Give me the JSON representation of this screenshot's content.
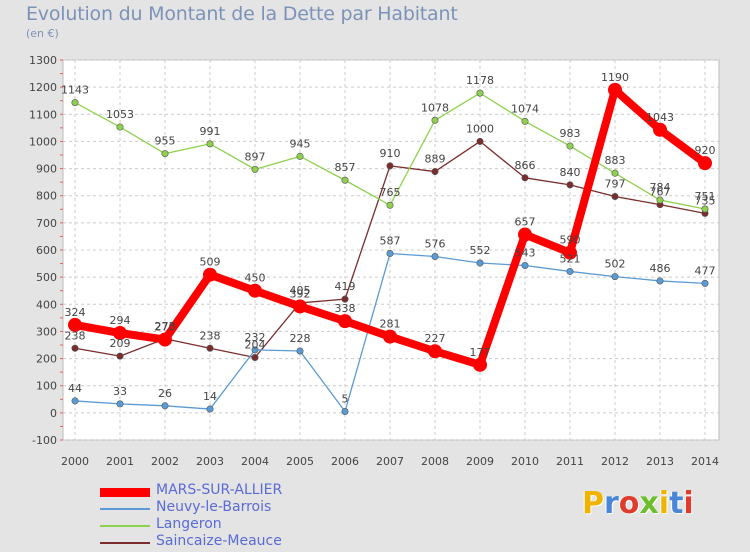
{
  "title": "Evolution du Montant de la Dette par Habitant",
  "unit": "(en €)",
  "logo": {
    "letters": [
      "P",
      "r",
      "o",
      "x",
      "i",
      "t",
      "i"
    ],
    "colors": [
      "#f0b400",
      "#4a86d8",
      "#e03c2e",
      "#6cbf2a",
      "#f0b400",
      "#4a86d8",
      "#e03c2e"
    ]
  },
  "chart_data": {
    "type": "line",
    "title": "Evolution du Montant de la Dette par Habitant",
    "ylabel": "(en €)",
    "xlabel": "",
    "x": [
      "2000",
      "2001",
      "2002",
      "2003",
      "2004",
      "2005",
      "2006",
      "2007",
      "2008",
      "2009",
      "2010",
      "2011",
      "2012",
      "2013",
      "2014"
    ],
    "ylim": [
      -100,
      1300
    ],
    "yticks": [
      -100,
      0,
      100,
      200,
      300,
      400,
      500,
      600,
      700,
      800,
      900,
      1000,
      1100,
      1200,
      1300
    ],
    "grid": true,
    "legend": "bottom-left",
    "series": [
      {
        "name": "MARS-SUR-ALLIER",
        "color": "#ff0000",
        "values": [
          324,
          294,
          270,
          509,
          450,
          392,
          338,
          281,
          227,
          177,
          657,
          590,
          1190,
          1043,
          920
        ],
        "labels": [
          "324",
          "294",
          "270",
          "509",
          "450",
          "392",
          "338",
          "281",
          "227",
          "177",
          "657",
          "590",
          "1190",
          "1043",
          "920"
        ]
      },
      {
        "name": "Neuvy-le-Barrois",
        "color": "#5b9bd5",
        "values": [
          44,
          33,
          26,
          14,
          232,
          228,
          5,
          587,
          576,
          552,
          543,
          521,
          502,
          486,
          477
        ],
        "labels": [
          "44",
          "33",
          "26",
          "14",
          "232",
          "228",
          "5",
          "587",
          "576",
          "552",
          "543",
          "521",
          "502",
          "486",
          "477"
        ]
      },
      {
        "name": "Langeron",
        "color": "#8fd14f",
        "values": [
          1143,
          1053,
          955,
          991,
          897,
          945,
          857,
          765,
          1078,
          1178,
          1074,
          983,
          883,
          784,
          751
        ],
        "labels": [
          "1143",
          "1053",
          "955",
          "991",
          "897",
          "945",
          "857",
          "765",
          "1078",
          "1178",
          "1074",
          "983",
          "883",
          "784",
          "751"
        ]
      },
      {
        "name": "Saincaize-Meauce",
        "color": "#7b2d2d",
        "values": [
          238,
          209,
          273,
          238,
          204,
          405,
          419,
          910,
          889,
          1000,
          866,
          840,
          797,
          767,
          735
        ],
        "labels": [
          "238",
          "209",
          "273",
          "238",
          "204",
          "405",
          "419",
          "910",
          "889",
          "1000",
          "866",
          "840",
          "797",
          "767",
          "735"
        ]
      }
    ]
  }
}
